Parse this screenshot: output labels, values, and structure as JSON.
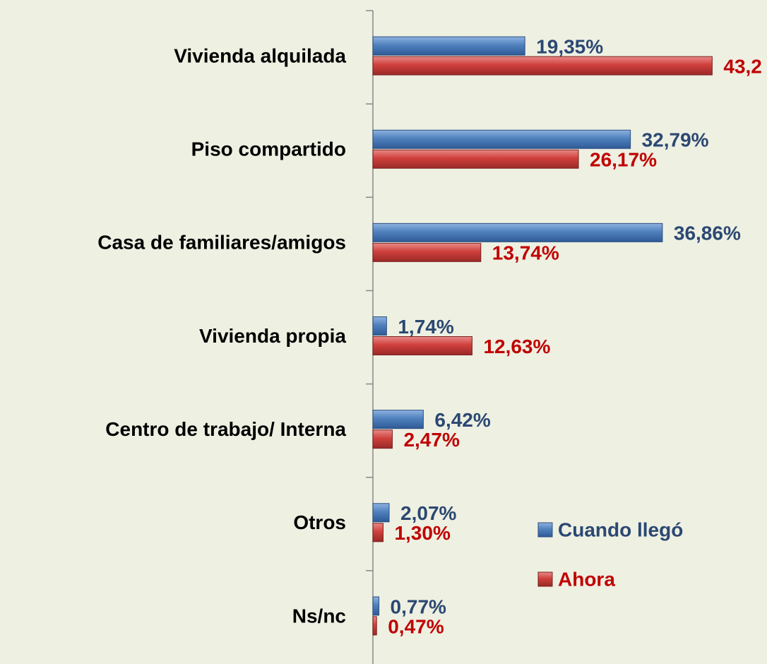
{
  "chart_data": {
    "type": "hbar",
    "categories": [
      "Vivienda alquilada",
      "Piso compartido",
      "Casa de familiares/amigos",
      "Vivienda propia",
      "Centro de trabajo/ Interna",
      "Otros",
      "Ns/nc"
    ],
    "series": [
      {
        "name": "Cuando llegó",
        "color": "#4f81bd",
        "label_color": "#2b4872",
        "values": [
          19.35,
          32.79,
          36.86,
          1.74,
          6.42,
          2.07,
          0.77
        ],
        "value_labels": [
          "19,35%",
          "32,79%",
          "36,86%",
          "1,74%",
          "6,42%",
          "2,07%",
          "0,77%"
        ]
      },
      {
        "name": "Ahora",
        "color": "#c0504d",
        "label_color": "#c00000",
        "values": [
          43.2,
          26.17,
          13.74,
          12.63,
          2.47,
          1.3,
          0.47
        ],
        "value_labels": [
          "43,2",
          "26,17%",
          "13,74%",
          "12,63%",
          "2,47%",
          "1,30%",
          "0,47%"
        ]
      }
    ],
    "xlim": [
      0,
      50
    ],
    "legend": "lower-right"
  }
}
